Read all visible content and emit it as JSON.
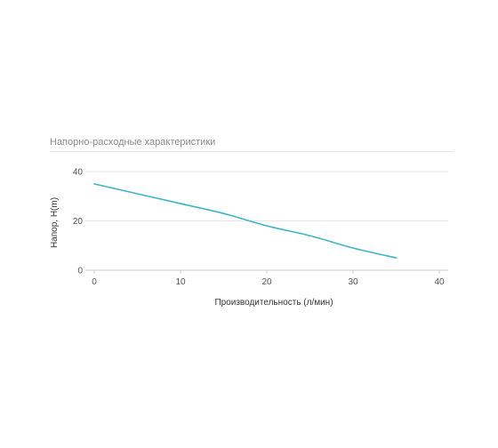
{
  "chart_data": {
    "type": "line",
    "title": "Напорно-расходные характеристики",
    "xlabel": "Производительность (л/мин)",
    "ylabel": "Напор, Н(m)",
    "xlim": [
      0,
      40
    ],
    "ylim": [
      0,
      40
    ],
    "xticks": [
      "0",
      "10",
      "20",
      "30",
      "40"
    ],
    "yticks": [
      "0",
      "20",
      "40"
    ],
    "grid": true,
    "legend": "none",
    "series": [
      {
        "color": "#3cb6c6",
        "points": [
          {
            "x": 0,
            "y": 35
          },
          {
            "x": 5,
            "y": 31
          },
          {
            "x": 10,
            "y": 27
          },
          {
            "x": 15,
            "y": 23
          },
          {
            "x": 20,
            "y": 18
          },
          {
            "x": 25,
            "y": 14
          },
          {
            "x": 30,
            "y": 9
          },
          {
            "x": 35,
            "y": 5
          }
        ]
      }
    ],
    "colors": {
      "grid": "#e6e6e6",
      "axis": "#cccccc"
    }
  }
}
